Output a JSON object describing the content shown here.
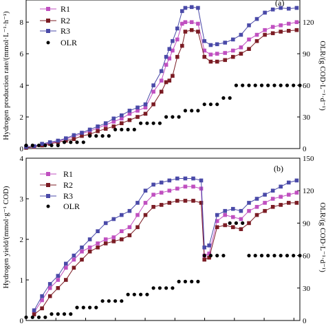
{
  "chart_data": [
    {
      "type": "line",
      "panel_label": "(a)",
      "ylabel": "Hydrogen production rate/(mmol·L⁻¹·h⁻¹)",
      "y2label": "OLR/(g COD·L⁻¹·d⁻¹)",
      "ylim": [
        0,
        9.4
      ],
      "y2lim": [
        0,
        141
      ],
      "xlim": [
        0,
        172
      ],
      "yticks": [
        "0",
        "2",
        "4",
        "6",
        "8"
      ],
      "y2ticks": [
        "0",
        "30",
        "60",
        "90",
        "120"
      ],
      "legend_position": "top-left",
      "series": [
        {
          "name": "R1",
          "color": "#c050c0",
          "marker": "square",
          "axis": "left",
          "x": [
            0,
            5,
            10,
            15,
            20,
            25,
            30,
            35,
            40,
            45,
            50,
            55,
            60,
            65,
            70,
            75,
            80,
            85,
            88,
            90,
            92,
            95,
            98,
            100,
            104,
            108,
            112,
            116,
            120,
            125,
            130,
            135,
            140,
            145,
            150,
            155,
            160,
            165,
            170
          ],
          "y": [
            0.1,
            0.15,
            0.25,
            0.35,
            0.45,
            0.6,
            0.75,
            0.95,
            1.1,
            1.3,
            1.5,
            1.7,
            1.9,
            2.2,
            2.4,
            2.6,
            3.6,
            4.3,
            5.3,
            5.7,
            6.2,
            6.9,
            7.9,
            8.0,
            8.0,
            7.9,
            6.2,
            5.95,
            6.0,
            6.05,
            6.2,
            6.4,
            6.9,
            7.2,
            7.5,
            7.7,
            7.8,
            7.9,
            8.0
          ]
        },
        {
          "name": "R2",
          "color": "#7b1c24",
          "marker": "square",
          "axis": "left",
          "x": [
            0,
            5,
            10,
            15,
            20,
            25,
            30,
            35,
            40,
            45,
            50,
            55,
            60,
            65,
            70,
            75,
            80,
            85,
            88,
            90,
            92,
            95,
            98,
            100,
            104,
            108,
            112,
            116,
            120,
            125,
            130,
            135,
            140,
            145,
            150,
            155,
            160,
            165,
            170
          ],
          "y": [
            0.05,
            0.1,
            0.2,
            0.3,
            0.4,
            0.5,
            0.6,
            0.8,
            0.9,
            1.1,
            1.25,
            1.4,
            1.6,
            1.8,
            2.0,
            2.2,
            2.8,
            3.6,
            4.2,
            4.3,
            4.6,
            5.8,
            6.5,
            7.4,
            7.5,
            7.4,
            5.8,
            5.5,
            5.5,
            5.6,
            5.8,
            6.0,
            6.3,
            6.8,
            7.2,
            7.3,
            7.4,
            7.45,
            7.5
          ]
        },
        {
          "name": "R3",
          "color": "#4a4aa8",
          "marker": "square",
          "axis": "left",
          "x": [
            0,
            5,
            10,
            15,
            20,
            25,
            30,
            35,
            40,
            45,
            50,
            55,
            60,
            65,
            70,
            75,
            80,
            85,
            88,
            90,
            92,
            95,
            98,
            100,
            104,
            108,
            112,
            116,
            120,
            125,
            130,
            135,
            140,
            145,
            150,
            155,
            160,
            165,
            170
          ],
          "y": [
            0.1,
            0.15,
            0.3,
            0.4,
            0.5,
            0.65,
            0.85,
            1.0,
            1.2,
            1.4,
            1.6,
            1.9,
            2.1,
            2.4,
            2.6,
            2.8,
            4.0,
            4.9,
            5.8,
            6.3,
            6.8,
            7.6,
            8.7,
            8.9,
            8.95,
            8.9,
            6.8,
            6.55,
            6.6,
            6.7,
            6.9,
            7.2,
            7.8,
            8.2,
            8.6,
            8.8,
            8.9,
            8.85,
            8.9
          ]
        },
        {
          "name": "OLR",
          "color": "#000000",
          "marker": "circle",
          "axis": "right",
          "x": [
            0,
            4,
            8,
            12,
            16,
            20,
            24,
            28,
            32,
            36,
            40,
            44,
            48,
            52,
            56,
            60,
            64,
            68,
            72,
            76,
            80,
            84,
            88,
            92,
            96,
            100,
            104,
            108,
            112,
            116,
            120,
            124,
            128,
            132,
            136,
            140,
            144,
            148,
            152,
            156,
            160,
            164,
            168,
            172
          ],
          "y": [
            3,
            3,
            3,
            3,
            3,
            3,
            6,
            6,
            6,
            6,
            12,
            12,
            12,
            12,
            18,
            18,
            18,
            18,
            24,
            24,
            24,
            24,
            30,
            30,
            30,
            36,
            36,
            36,
            42,
            42,
            42,
            48,
            48,
            60,
            60,
            60,
            60,
            60,
            60,
            60,
            60,
            60,
            60,
            60
          ]
        }
      ]
    },
    {
      "type": "line",
      "panel_label": "(b)",
      "ylabel": "Hydrogen yield/(mmol·g⁻¹ COD)",
      "y2label": "OLR/(g COD·L⁻¹·d⁻¹)",
      "ylim": [
        0,
        4
      ],
      "y2lim": [
        0,
        150
      ],
      "xlim": [
        0,
        172
      ],
      "yticks": [
        "0",
        "1",
        "2",
        "3",
        "4"
      ],
      "y2ticks": [
        "0",
        "30",
        "60",
        "90",
        "120",
        "150"
      ],
      "xtick_count": 9,
      "legend_position": "top-left",
      "series": [
        {
          "name": "R1",
          "color": "#c050c0",
          "marker": "square",
          "axis": "left",
          "x": [
            5,
            10,
            15,
            20,
            25,
            30,
            35,
            40,
            45,
            50,
            55,
            60,
            65,
            70,
            75,
            80,
            85,
            90,
            95,
            100,
            105,
            110,
            112,
            115,
            120,
            125,
            130,
            135,
            140,
            145,
            150,
            155,
            160,
            165,
            170
          ],
          "y": [
            0.2,
            0.5,
            0.8,
            1.0,
            1.3,
            1.5,
            1.7,
            1.8,
            1.9,
            2.0,
            2.05,
            2.2,
            2.3,
            2.6,
            2.9,
            3.1,
            3.15,
            3.2,
            3.25,
            3.3,
            3.3,
            3.25,
            1.6,
            1.65,
            2.45,
            2.6,
            2.55,
            2.5,
            2.7,
            2.8,
            2.9,
            3.0,
            3.05,
            3.1,
            3.15
          ]
        },
        {
          "name": "R2",
          "color": "#7b1c24",
          "marker": "square",
          "axis": "left",
          "x": [
            5,
            10,
            15,
            20,
            25,
            30,
            35,
            40,
            45,
            50,
            55,
            60,
            65,
            70,
            75,
            80,
            85,
            90,
            95,
            100,
            105,
            110,
            112,
            115,
            120,
            125,
            130,
            135,
            140,
            145,
            150,
            155,
            160,
            165,
            170
          ],
          "y": [
            0.15,
            0.3,
            0.6,
            0.8,
            1.0,
            1.3,
            1.5,
            1.7,
            1.8,
            1.9,
            1.95,
            2.0,
            2.1,
            2.3,
            2.6,
            2.8,
            2.85,
            2.9,
            2.95,
            2.95,
            2.95,
            2.9,
            1.5,
            1.55,
            2.3,
            2.35,
            2.3,
            2.25,
            2.4,
            2.6,
            2.7,
            2.8,
            2.85,
            2.9,
            2.9
          ]
        },
        {
          "name": "R3",
          "color": "#4a4aa8",
          "marker": "square",
          "axis": "left",
          "x": [
            5,
            10,
            15,
            20,
            25,
            30,
            35,
            40,
            45,
            50,
            55,
            60,
            65,
            70,
            75,
            80,
            85,
            90,
            95,
            100,
            105,
            110,
            112,
            115,
            120,
            125,
            130,
            135,
            140,
            145,
            150,
            155,
            160,
            165,
            170
          ],
          "y": [
            0.25,
            0.6,
            0.9,
            1.1,
            1.4,
            1.6,
            1.8,
            2.0,
            2.2,
            2.4,
            2.5,
            2.6,
            2.7,
            2.9,
            3.2,
            3.35,
            3.4,
            3.45,
            3.5,
            3.5,
            3.5,
            3.45,
            1.8,
            1.85,
            2.6,
            2.7,
            2.75,
            2.7,
            2.9,
            3.0,
            3.1,
            3.2,
            3.3,
            3.4,
            3.45
          ]
        },
        {
          "name": "OLR",
          "color": "#000000",
          "marker": "circle",
          "axis": "right",
          "x": [
            0,
            4,
            8,
            12,
            16,
            20,
            24,
            28,
            32,
            36,
            40,
            44,
            48,
            52,
            56,
            60,
            64,
            68,
            72,
            76,
            80,
            84,
            88,
            92,
            96,
            100,
            104,
            108,
            112,
            116,
            120,
            124,
            128,
            132,
            136,
            140,
            144,
            148,
            152,
            156,
            160,
            164,
            168,
            172
          ],
          "y": [
            3,
            3,
            3,
            3,
            6,
            6,
            6,
            6,
            12,
            12,
            12,
            12,
            18,
            18,
            18,
            18,
            24,
            24,
            24,
            24,
            30,
            30,
            30,
            30,
            36,
            36,
            36,
            36,
            60,
            60,
            60,
            60,
            90,
            90,
            90,
            60,
            60,
            60,
            60,
            60,
            60,
            60,
            60,
            60
          ]
        }
      ]
    }
  ]
}
